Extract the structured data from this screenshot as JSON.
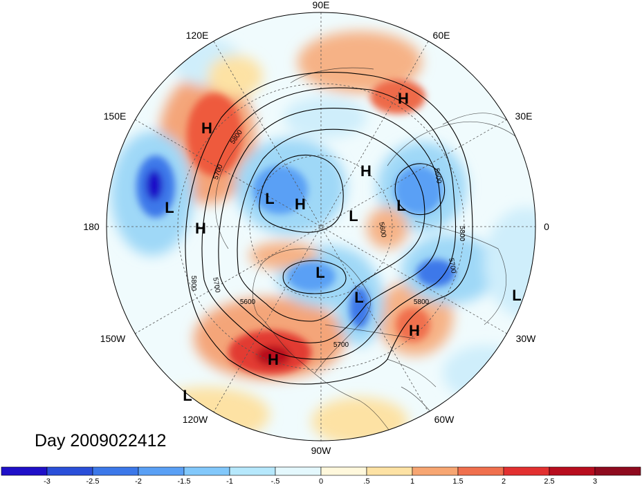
{
  "map": {
    "title": "Day 2009022412",
    "longitude_labels": [
      {
        "id": "90e",
        "text": "90E"
      },
      {
        "id": "60e",
        "text": "60E"
      },
      {
        "id": "30e",
        "text": "30E"
      },
      {
        "id": "0",
        "text": "0"
      },
      {
        "id": "30w",
        "text": "30W"
      },
      {
        "id": "60w",
        "text": "60W"
      },
      {
        "id": "90w",
        "text": "90W"
      },
      {
        "id": "120w",
        "text": "120W"
      },
      {
        "id": "150w",
        "text": "150W"
      },
      {
        "id": "180",
        "text": "180"
      },
      {
        "id": "150e",
        "text": "150E"
      },
      {
        "id": "120e",
        "text": "120E"
      }
    ],
    "pressure_centers": [
      {
        "type": "H",
        "text": "H"
      },
      {
        "type": "H",
        "text": "H"
      },
      {
        "type": "H",
        "text": "H"
      },
      {
        "type": "H",
        "text": "H"
      },
      {
        "type": "H",
        "text": "H"
      },
      {
        "type": "H",
        "text": "H"
      },
      {
        "type": "H",
        "text": "H"
      },
      {
        "type": "L",
        "text": "L"
      },
      {
        "type": "L",
        "text": "L"
      },
      {
        "type": "L",
        "text": "L"
      },
      {
        "type": "L",
        "text": "L"
      },
      {
        "type": "L",
        "text": "L"
      },
      {
        "type": "L",
        "text": "L"
      },
      {
        "type": "L",
        "text": "L"
      },
      {
        "type": "L",
        "text": "L"
      }
    ],
    "contour_labels": [
      "5800",
      "5700",
      "5600",
      "5600",
      "5800",
      "5700",
      "5800",
      "5600",
      "5700",
      "5800",
      "5700"
    ],
    "colorbar": {
      "ticks": [
        "-3",
        "-2.5",
        "-2",
        "-1.5",
        "-1",
        "-.5",
        "0",
        ".5",
        "1",
        "1.5",
        "2",
        "2.5",
        "3"
      ],
      "colors": [
        "#1f10c8",
        "#2a4fd9",
        "#3c78e9",
        "#5aa0f5",
        "#82c8fb",
        "#b6e8fc",
        "#e4f8fd",
        "#fff8dc",
        "#fde2a4",
        "#f7a672",
        "#f0704e",
        "#e23030",
        "#b80d1e",
        "#8e0a1e"
      ]
    }
  }
}
